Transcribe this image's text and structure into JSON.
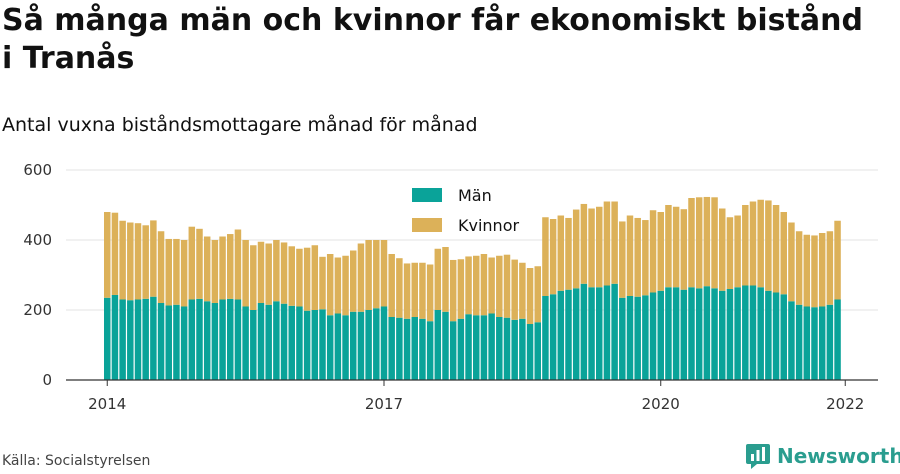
{
  "title": "Så många män och kvinnor får ekonomiskt bistånd i Tranås",
  "subtitle": "Antal vuxna biståndsmottagare månad för månad",
  "source": "Källa: Socialstyrelsen",
  "brand": "Newsworthy",
  "colors": {
    "man": "#0aa399",
    "kvinnor": "#dcb159",
    "grid": "#e3e3e3",
    "brand": "#2a9d8f"
  },
  "chart_data": {
    "type": "bar",
    "stacked": true,
    "ylim": [
      0,
      600
    ],
    "yticks": [
      0,
      200,
      400,
      600
    ],
    "xticks": [
      {
        "label": "2014",
        "index": 0
      },
      {
        "label": "2017",
        "index": 36
      },
      {
        "label": "2020",
        "index": 72
      },
      {
        "label": "2022",
        "index": 96
      }
    ],
    "legend_position": "top-center",
    "grid": true,
    "series": [
      {
        "name": "Män",
        "color": "#0aa399",
        "values": [
          235,
          243,
          230,
          228,
          230,
          232,
          238,
          220,
          213,
          215,
          210,
          230,
          232,
          225,
          220,
          230,
          232,
          230,
          210,
          200,
          220,
          215,
          225,
          218,
          212,
          210,
          198,
          200,
          202,
          185,
          190,
          185,
          195,
          195,
          200,
          205,
          210,
          180,
          178,
          175,
          180,
          175,
          168,
          200,
          195,
          168,
          175,
          188,
          185,
          185,
          190,
          180,
          178,
          172,
          175,
          160,
          165,
          240,
          245,
          255,
          258,
          262,
          275,
          265,
          265,
          270,
          275,
          235,
          240,
          238,
          242,
          250,
          255,
          265,
          265,
          258,
          265,
          262,
          268,
          262,
          255,
          260,
          265,
          270,
          270,
          265,
          255,
          250,
          245,
          225,
          215,
          210,
          208,
          210,
          215,
          230
        ]
      },
      {
        "name": "Kvinnor",
        "color": "#dcb159",
        "values": [
          245,
          235,
          225,
          222,
          218,
          210,
          218,
          205,
          190,
          188,
          190,
          208,
          200,
          185,
          180,
          180,
          185,
          200,
          190,
          185,
          175,
          175,
          175,
          175,
          170,
          165,
          180,
          185,
          150,
          175,
          160,
          170,
          175,
          195,
          200,
          195,
          190,
          180,
          170,
          158,
          155,
          160,
          162,
          175,
          185,
          175,
          170,
          165,
          170,
          175,
          160,
          175,
          180,
          172,
          160,
          160,
          160,
          225,
          215,
          215,
          205,
          225,
          228,
          225,
          230,
          240,
          235,
          218,
          230,
          225,
          215,
          235,
          225,
          235,
          230,
          230,
          255,
          260,
          255,
          260,
          235,
          205,
          205,
          230,
          240,
          250,
          258,
          250,
          235,
          225,
          210,
          205,
          205,
          210,
          210,
          225
        ]
      }
    ]
  }
}
